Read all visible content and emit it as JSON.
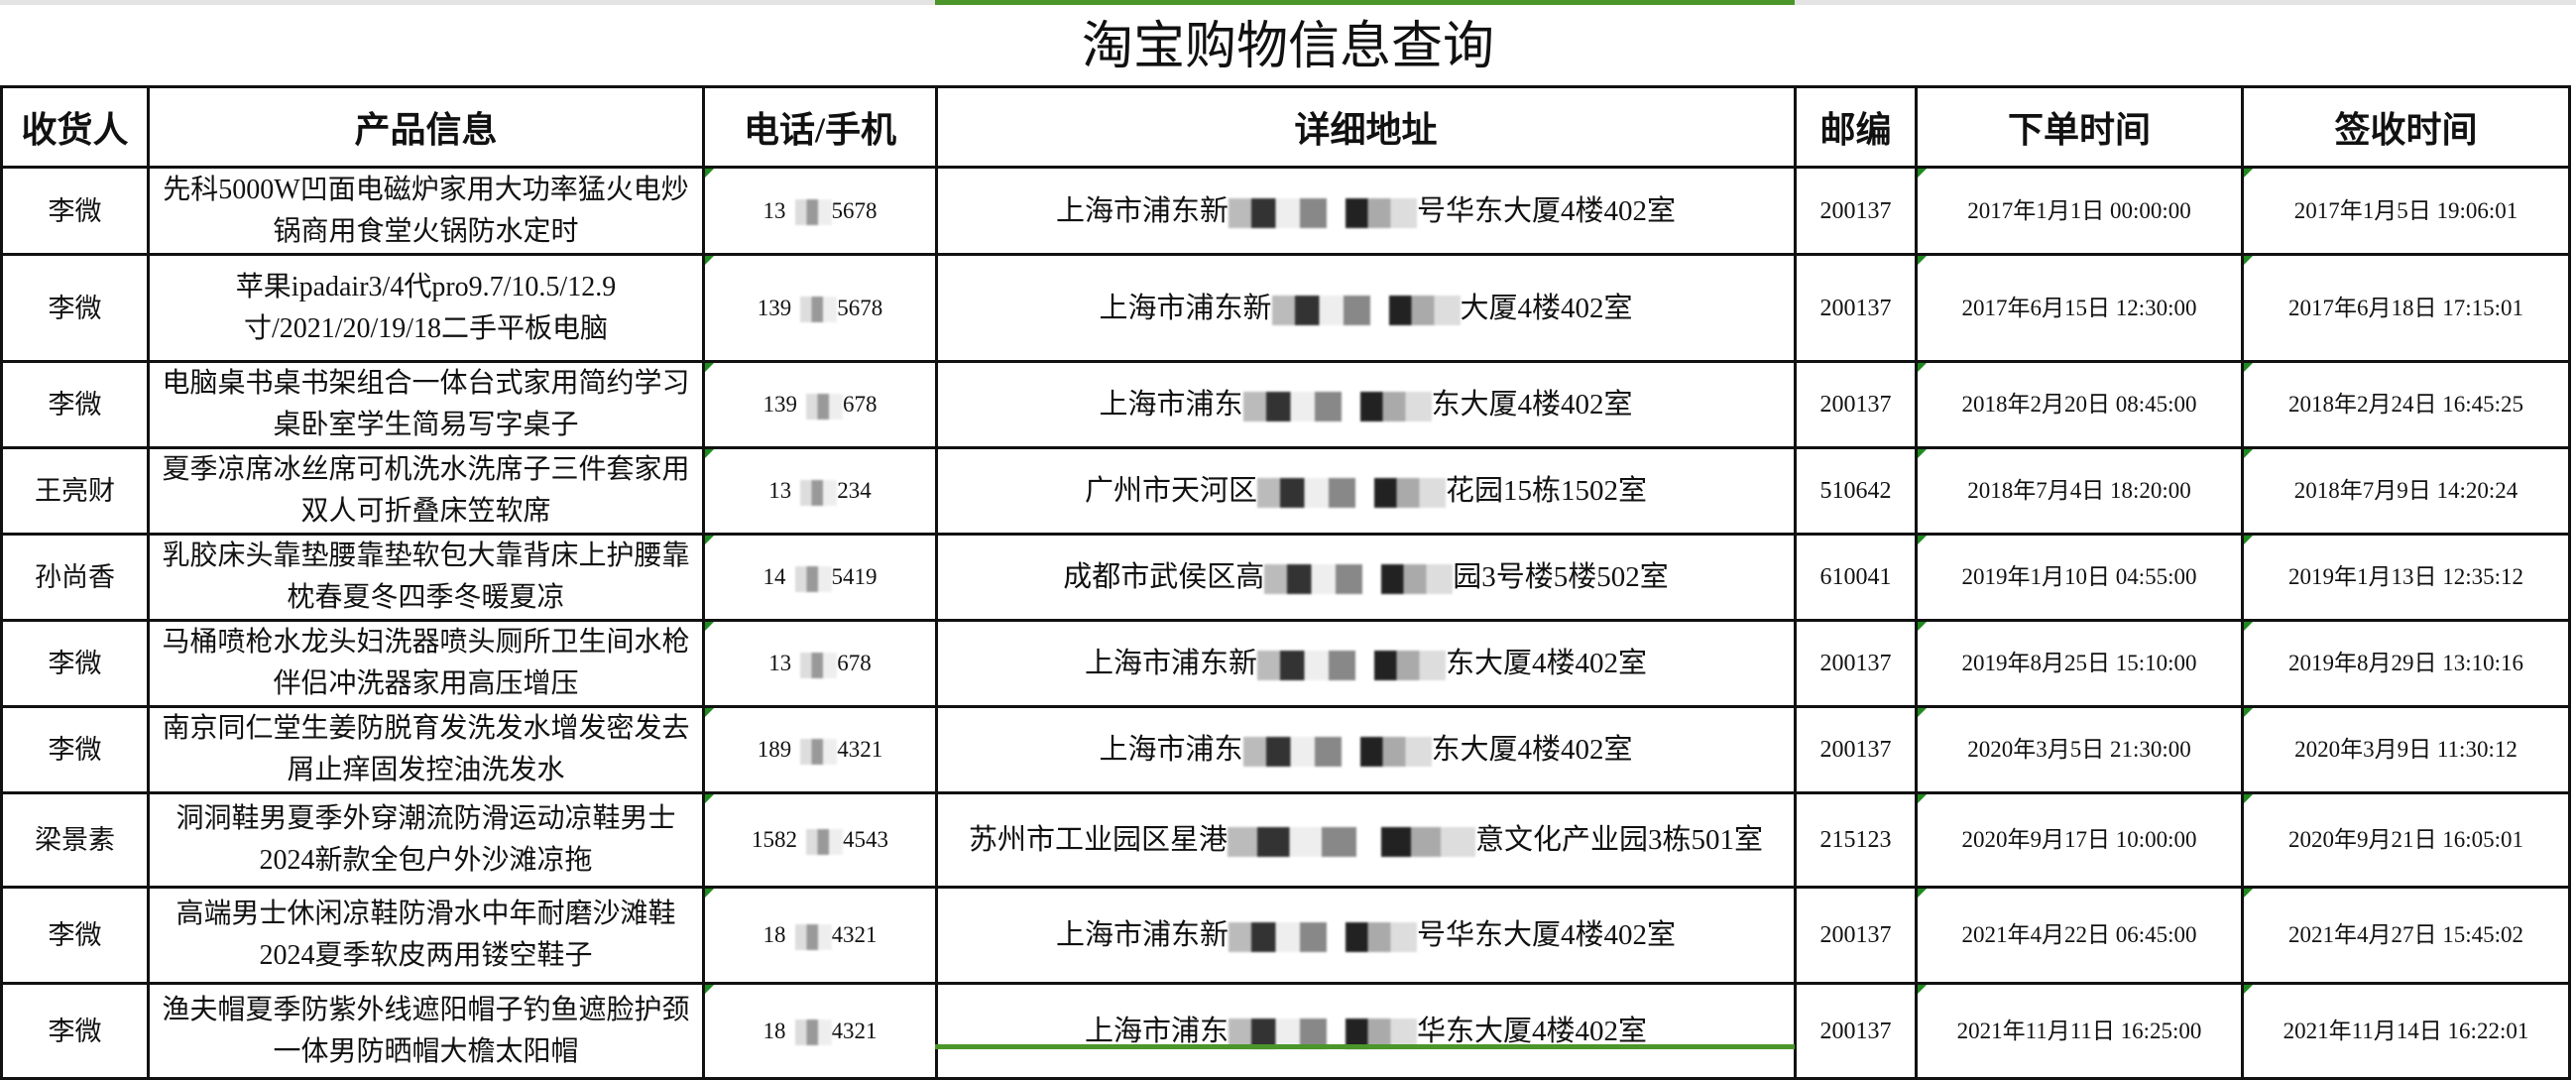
{
  "title": "淘宝购物信息查询",
  "colors": {
    "selection_accent": "#4a962a",
    "cell_marker": "#1f8a1f"
  },
  "headers": [
    "收货人",
    "产品信息",
    "电话/手机",
    "详细地址",
    "邮编",
    "下单时间",
    "签收时间"
  ],
  "rows": [
    {
      "name": "李微",
      "product": "先科5000W凹面电磁炉家用大功率猛火电炒锅商用食堂火锅防水定时",
      "phone_start": "13",
      "phone_end": "5678",
      "addr_start": "上海市浦东新",
      "addr_end": "号华东大厦4楼402室",
      "zip": "200137",
      "order_time": "2017年1月1日 00:00:00",
      "sign_time": "2017年1月5日 19:06:01"
    },
    {
      "name": "李微",
      "product": "苹果ipadair3/4代pro9.7/10.5/12.9寸/2021/20/19/18二手平板电脑",
      "phone_start": "139",
      "phone_end": "5678",
      "addr_start": "上海市浦东新",
      "addr_end": "大厦4楼402室",
      "zip": "200137",
      "order_time": "2017年6月15日 12:30:00",
      "sign_time": "2017年6月18日 17:15:01"
    },
    {
      "name": "李微",
      "product": "电脑桌书桌书架组合一体台式家用简约学习桌卧室学生简易写字桌子",
      "phone_start": "139",
      "phone_end": "678",
      "addr_start": "上海市浦东",
      "addr_end": "东大厦4楼402室",
      "zip": "200137",
      "order_time": "2018年2月20日 08:45:00",
      "sign_time": "2018年2月24日 16:45:25"
    },
    {
      "name": "王亮财",
      "product": "夏季凉席冰丝席可机洗水洗席子三件套家用双人可折叠床笠软席",
      "phone_start": "13",
      "phone_end": "234",
      "addr_start": "广州市天河区",
      "addr_end": "花园15栋1502室",
      "zip": "510642",
      "order_time": "2018年7月4日 18:20:00",
      "sign_time": "2018年7月9日 14:20:24"
    },
    {
      "name": "孙尚香",
      "product": "乳胶床头靠垫腰靠垫软包大靠背床上护腰靠枕春夏冬四季冬暖夏凉",
      "phone_start": "14",
      "phone_end": "5419",
      "addr_start": "成都市武侯区高",
      "addr_end": "园3号楼5楼502室",
      "zip": "610041",
      "order_time": "2019年1月10日 04:55:00",
      "sign_time": "2019年1月13日 12:35:12"
    },
    {
      "name": "李微",
      "product": "马桶喷枪水龙头妇洗器喷头厕所卫生间水枪伴侣冲洗器家用高压增压",
      "phone_start": "13",
      "phone_end": "678",
      "addr_start": "上海市浦东新",
      "addr_end": "东大厦4楼402室",
      "zip": "200137",
      "order_time": "2019年8月25日 15:10:00",
      "sign_time": "2019年8月29日 13:10:16"
    },
    {
      "name": "李微",
      "product": "南京同仁堂生姜防脱育发洗发水增发密发去屑止痒固发控油洗发水",
      "phone_start": "189",
      "phone_end": "4321",
      "addr_start": "上海市浦东",
      "addr_end": "东大厦4楼402室",
      "zip": "200137",
      "order_time": "2020年3月5日 21:30:00",
      "sign_time": "2020年3月9日 11:30:12"
    },
    {
      "name": "梁景素",
      "product": "洞洞鞋男夏季外穿潮流防滑运动凉鞋男士2024新款全包户外沙滩凉拖",
      "phone_start": "1582",
      "phone_end": "4543",
      "addr_start": "苏州市工业园区星港",
      "addr_end": "意文化产业园3栋501室",
      "zip": "215123",
      "order_time": "2020年9月17日 10:00:00",
      "sign_time": "2020年9月21日 16:05:01"
    },
    {
      "name": "李微",
      "product": "高端男士休闲凉鞋防滑水中年耐磨沙滩鞋2024夏季软皮两用镂空鞋子",
      "phone_start": "18",
      "phone_end": "4321",
      "addr_start": "上海市浦东新",
      "addr_end": "号华东大厦4楼402室",
      "zip": "200137",
      "order_time": "2021年4月22日 06:45:00",
      "sign_time": "2021年4月27日 15:45:02"
    },
    {
      "name": "李微",
      "product": "渔夫帽夏季防紫外线遮阳帽子钓鱼遮脸护颈一体男防晒帽大檐太阳帽",
      "phone_start": "18",
      "phone_end": "4321",
      "addr_start": "上海市浦东",
      "addr_end": "华东大厦4楼402室",
      "zip": "200137",
      "order_time": "2021年11月11日 16:25:00",
      "sign_time": "2021年11月14日 16:22:01"
    }
  ]
}
